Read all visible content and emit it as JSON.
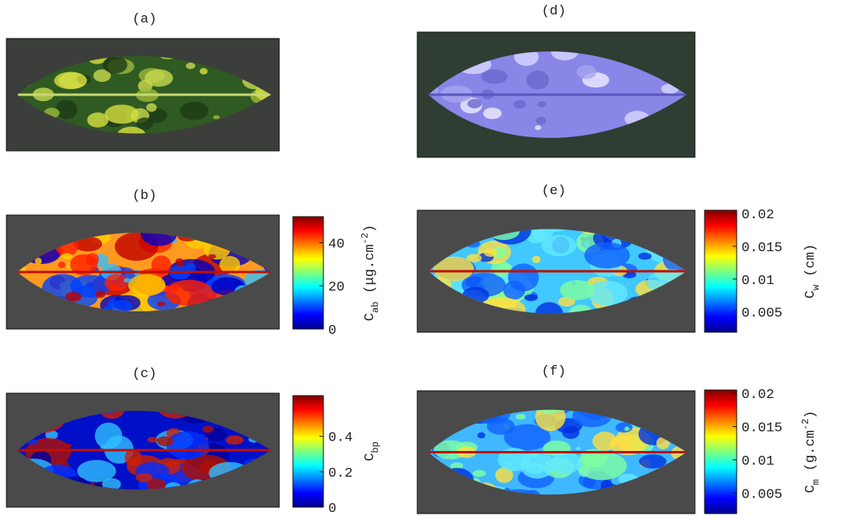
{
  "panels": [
    {
      "label": "(a)"
    },
    {
      "label": "(b)",
      "colorbar": {
        "lim": [
          0,
          52
        ],
        "ticks": [
          0,
          20,
          40
        ],
        "title": {
          "symbol": "C",
          "sub": "ab",
          "unit": "(μg.cm",
          "sup": "-2",
          "close": ")"
        }
      }
    },
    {
      "label": "(c)",
      "colorbar": {
        "lim": [
          0,
          0.63
        ],
        "ticks": [
          0,
          0.2,
          0.4
        ],
        "title": {
          "symbol": "C",
          "sub": "bp"
        }
      }
    },
    {
      "label": "(d)"
    },
    {
      "label": "(e)",
      "colorbar": {
        "lim": [
          0.0019,
          0.0205
        ],
        "ticks": [
          0.005,
          0.01,
          0.015,
          0.02
        ],
        "title": {
          "symbol": "C",
          "sub": "w",
          "unit": "(cm)"
        }
      }
    },
    {
      "label": "(f)",
      "colorbar": {
        "lim": [
          0.0019,
          0.0205
        ],
        "ticks": [
          0.005,
          0.01,
          0.015,
          0.02
        ],
        "title": {
          "symbol": "C",
          "sub": "m",
          "unit": "(g.cm",
          "sup": "-2",
          "close": ")"
        }
      }
    }
  ]
}
